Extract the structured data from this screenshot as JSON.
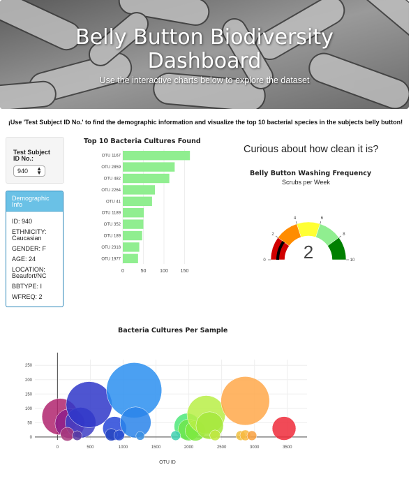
{
  "header": {
    "title_line1": "Belly Button Biodiversity",
    "title_line2": "Dashboard",
    "subtitle": "Use the interactive charts below to explore the dataset"
  },
  "instructions": "¡Use 'Test Subject ID No.' to find the demographic information and visualize the top 10 bacterial species in the subjects belly button!",
  "selector": {
    "label_line1": "Test Subject",
    "label_line2": "ID No.:",
    "value": "940"
  },
  "demographics": {
    "title_line1": "Demographic",
    "title_line2": "Info",
    "id": "ID: 940",
    "ethnicity_line1": "ETHNICITY:",
    "ethnicity_line2": "Caucasian",
    "gender": "GENDER: F",
    "age": "AGE: 24",
    "location_line1": "LOCATION:",
    "location_line2": "Beaufort/NC",
    "bbtype": "BBTYPE: I",
    "wfreq": "WFREQ: 2"
  },
  "gauge_header": {
    "heading": "Curious about how clean it is?"
  },
  "chart_data": [
    {
      "type": "bar",
      "orientation": "horizontal",
      "title": "Top 10 Bacteria Cultures Found",
      "categories": [
        "OTU 1167",
        "OTU 2859",
        "OTU 482",
        "OTU 2264",
        "OTU 41",
        "OTU 1189",
        "OTU 352",
        "OTU 189",
        "OTU 2318",
        "OTU 1977"
      ],
      "values": [
        163,
        126,
        113,
        78,
        71,
        51,
        50,
        47,
        40,
        37
      ],
      "xticks": [
        0,
        50,
        100,
        150
      ],
      "xlim": [
        0,
        180
      ],
      "color": "#90ee90"
    },
    {
      "type": "gauge",
      "title": "Belly Button Washing Frequency",
      "subtitle": "Scrubs per Week",
      "value": 2,
      "range": [
        0,
        10
      ],
      "ticks": [
        0,
        2,
        4,
        6,
        8,
        10
      ],
      "band_colors": [
        "#d00000",
        "#ff8c00",
        "#ffff33",
        "#90ee90",
        "#008000"
      ],
      "needle_color": "#000000"
    },
    {
      "type": "scatter",
      "title": "Bacteria Cultures Per Sample",
      "xlabel": "OTU ID",
      "xticks": [
        0,
        500,
        1000,
        1500,
        2000,
        2500,
        3000,
        3500
      ],
      "yticks": [
        0,
        50,
        100,
        150,
        200,
        250
      ],
      "xlim": [
        -450,
        3800
      ],
      "ylim": [
        -10,
        270
      ],
      "points": [
        {
          "x": 41,
          "y": 71,
          "color": "#b0246e"
        },
        {
          "x": 189,
          "y": 47,
          "color": "#8e1f8a"
        },
        {
          "x": 352,
          "y": 50,
          "color": "#3f3fc5"
        },
        {
          "x": 482,
          "y": 113,
          "color": "#2f37c9"
        },
        {
          "x": 870,
          "y": 30,
          "color": "#2747d8"
        },
        {
          "x": 1167,
          "y": 163,
          "color": "#2b8ff0"
        },
        {
          "x": 1189,
          "y": 51,
          "color": "#2a84ea"
        },
        {
          "x": 1977,
          "y": 37,
          "color": "#4fe87a"
        },
        {
          "x": 2000,
          "y": 25,
          "color": "#6ee64c"
        },
        {
          "x": 2100,
          "y": 22,
          "color": "#7fea3e"
        },
        {
          "x": 2264,
          "y": 78,
          "color": "#b8ef46"
        },
        {
          "x": 2318,
          "y": 40,
          "color": "#a4e83c"
        },
        {
          "x": 2859,
          "y": 126,
          "color": "#ffa84a"
        },
        {
          "x": 3450,
          "y": 30,
          "color": "#ee2a3a"
        },
        {
          "x": 150,
          "y": 10,
          "color": "#a83a7c"
        },
        {
          "x": 300,
          "y": 5,
          "color": "#5a3aa0"
        },
        {
          "x": 820,
          "y": 8,
          "color": "#2847c0"
        },
        {
          "x": 940,
          "y": 6,
          "color": "#2a4fd0"
        },
        {
          "x": 1260,
          "y": 4,
          "color": "#3a8fe0"
        },
        {
          "x": 1800,
          "y": 5,
          "color": "#40d0b0"
        },
        {
          "x": 2400,
          "y": 6,
          "color": "#c0e840"
        },
        {
          "x": 2790,
          "y": 5,
          "color": "#f0c040"
        },
        {
          "x": 2860,
          "y": 6,
          "color": "#f8b840"
        },
        {
          "x": 2960,
          "y": 5,
          "color": "#f8a040"
        }
      ]
    }
  ]
}
